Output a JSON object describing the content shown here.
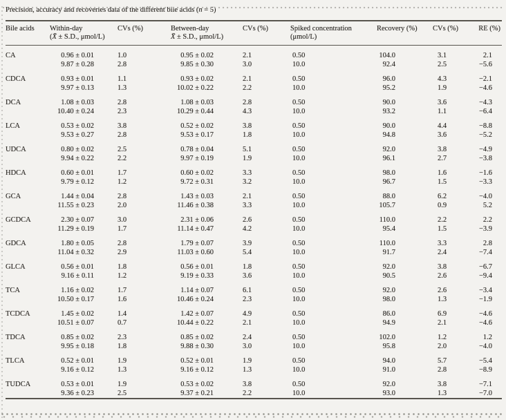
{
  "page": {
    "title": "Precision, accuracy and recoveries data of the different bile acids (n = 5)"
  },
  "table": {
    "columns": [
      {
        "label": "Bile acids",
        "sub": ""
      },
      {
        "label": "Within-day",
        "sub": "(X̄ ± S.D., μmol/L)"
      },
      {
        "label": "CVs (%)",
        "sub": ""
      },
      {
        "label": "Between-day",
        "sub": "X̄ ± S.D., μmol/L)"
      },
      {
        "label": "CVs (%)",
        "sub": ""
      },
      {
        "label": "Spiked concentration",
        "sub": "(μmol/L)"
      },
      {
        "label": "Recovery (%)",
        "sub": ""
      },
      {
        "label": "CVs (%)",
        "sub": ""
      },
      {
        "label": "RE (%)",
        "sub": ""
      }
    ],
    "groups": [
      {
        "acid": "CA",
        "rows": [
          [
            "0.96 ± 0.01",
            "1.0",
            "0.95 ± 0.02",
            "2.1",
            "0.50",
            "104.0",
            "3.1",
            "2.1"
          ],
          [
            "9.87 ± 0.28",
            "2.8",
            "9.85 ± 0.30",
            "3.0",
            "10.0",
            "92.4",
            "2.5",
            "−5.6"
          ]
        ]
      },
      {
        "acid": "CDCA",
        "rows": [
          [
            "0.93 ± 0.01",
            "1.1",
            "0.93 ± 0.02",
            "2.1",
            "0.50",
            "96.0",
            "4.3",
            "−2.1"
          ],
          [
            "9.97 ± 0.13",
            "1.3",
            "10.02 ± 0.22",
            "2.2",
            "10.0",
            "95.2",
            "1.9",
            "−4.6"
          ]
        ]
      },
      {
        "acid": "DCA",
        "rows": [
          [
            "1.08 ± 0.03",
            "2.8",
            "1.08 ± 0.03",
            "2.8",
            "0.50",
            "90.0",
            "3.6",
            "−4.3"
          ],
          [
            "10.40 ± 0.24",
            "2.3",
            "10.29 ± 0.44",
            "4.3",
            "10.0",
            "93.2",
            "1.1",
            "−6.4"
          ]
        ]
      },
      {
        "acid": "LCA",
        "rows": [
          [
            "0.53 ± 0.02",
            "3.8",
            "0.52 ± 0.02",
            "3.8",
            "0.50",
            "90.0",
            "4.4",
            "−8.8"
          ],
          [
            "9.53 ± 0.27",
            "2.8",
            "9.53 ± 0.17",
            "1.8",
            "10.0",
            "94.8",
            "3.6",
            "−5.2"
          ]
        ]
      },
      {
        "acid": "UDCA",
        "rows": [
          [
            "0.80 ± 0.02",
            "2.5",
            "0.78 ± 0.04",
            "5.1",
            "0.50",
            "92.0",
            "3.8",
            "−4.9"
          ],
          [
            "9.94 ± 0.22",
            "2.2",
            "9.97 ± 0.19",
            "1.9",
            "10.0",
            "96.1",
            "2.7",
            "−3.8"
          ]
        ]
      },
      {
        "acid": "HDCA",
        "rows": [
          [
            "0.60 ± 0.01",
            "1.7",
            "0.60 ± 0.02",
            "3.3",
            "0.50",
            "98.0",
            "1.6",
            "−1.6"
          ],
          [
            "9.79 ± 0.12",
            "1.2",
            "9.72 ± 0.31",
            "3.2",
            "10.0",
            "96.7",
            "1.5",
            "−3.3"
          ]
        ]
      },
      {
        "acid": "GCA",
        "rows": [
          [
            "1.44 ± 0.04",
            "2.8",
            "1.43 ± 0.03",
            "2.1",
            "0.50",
            "88.0",
            "6.2",
            "−4.0"
          ],
          [
            "11.55 ± 0.23",
            "2.0",
            "11.46 ± 0.38",
            "3.3",
            "10.0",
            "105.7",
            "0.9",
            "5.2"
          ]
        ]
      },
      {
        "acid": "GCDCA",
        "rows": [
          [
            "2.30 ± 0.07",
            "3.0",
            "2.31 ± 0.06",
            "2.6",
            "0.50",
            "110.0",
            "2.2",
            "2.2"
          ],
          [
            "11.29 ± 0.19",
            "1.7",
            "11.14 ± 0.47",
            "4.2",
            "10.0",
            "95.4",
            "1.5",
            "−3.9"
          ]
        ]
      },
      {
        "acid": "GDCA",
        "rows": [
          [
            "1.80 ± 0.05",
            "2.8",
            "1.79 ± 0.07",
            "3.9",
            "0.50",
            "110.0",
            "3.3",
            "2.8"
          ],
          [
            "11.04 ± 0.32",
            "2.9",
            "11.03 ± 0.60",
            "5.4",
            "10.0",
            "91.7",
            "2.4",
            "−7.4"
          ]
        ]
      },
      {
        "acid": "GLCA",
        "rows": [
          [
            "0.56 ± 0.01",
            "1.8",
            "0.56 ± 0.01",
            "1.8",
            "0.50",
            "92.0",
            "3.8",
            "−6.7"
          ],
          [
            "9.16 ± 0.11",
            "1.2",
            "9.19 ± 0.33",
            "3.6",
            "10.0",
            "90.5",
            "2.6",
            "−9.4"
          ]
        ]
      },
      {
        "acid": "TCA",
        "rows": [
          [
            "1.16 ± 0.02",
            "1.7",
            "1.14 ± 0.07",
            "6.1",
            "0.50",
            "92.0",
            "2.6",
            "−3.4"
          ],
          [
            "10.50 ± 0.17",
            "1.6",
            "10.46 ± 0.24",
            "2.3",
            "10.0",
            "98.0",
            "1.3",
            "−1.9"
          ]
        ]
      },
      {
        "acid": "TCDCA",
        "rows": [
          [
            "1.45 ± 0.02",
            "1.4",
            "1.42 ± 0.07",
            "4.9",
            "0.50",
            "86.0",
            "6.9",
            "−4.6"
          ],
          [
            "10.51 ± 0.07",
            "0.7",
            "10.44 ± 0.22",
            "2.1",
            "10.0",
            "94.9",
            "2.1",
            "−4.6"
          ]
        ]
      },
      {
        "acid": "TDCA",
        "rows": [
          [
            "0.85 ± 0.02",
            "2.3",
            "0.85 ± 0.02",
            "2.4",
            "0.50",
            "102.0",
            "1.2",
            "1.2"
          ],
          [
            "9.95 ± 0.18",
            "1.8",
            "9.88 ± 0.30",
            "3.0",
            "10.0",
            "95.8",
            "2.0",
            "−4.0"
          ]
        ]
      },
      {
        "acid": "TLCA",
        "rows": [
          [
            "0.52 ± 0.01",
            "1.9",
            "0.52 ± 0.01",
            "1.9",
            "0.50",
            "94.0",
            "5.7",
            "−5.4"
          ],
          [
            "9.16 ± 0.12",
            "1.3",
            "9.16 ± 0.12",
            "1.3",
            "10.0",
            "91.0",
            "2.8",
            "−8.9"
          ]
        ]
      },
      {
        "acid": "TUDCA",
        "rows": [
          [
            "0.53 ± 0.01",
            "1.9",
            "0.53 ± 0.02",
            "3.8",
            "0.50",
            "92.0",
            "3.8",
            "−7.1"
          ],
          [
            "9.36 ± 0.23",
            "2.5",
            "9.37 ± 0.21",
            "2.2",
            "10.0",
            "93.0",
            "1.3",
            "−7.0"
          ]
        ]
      }
    ]
  }
}
